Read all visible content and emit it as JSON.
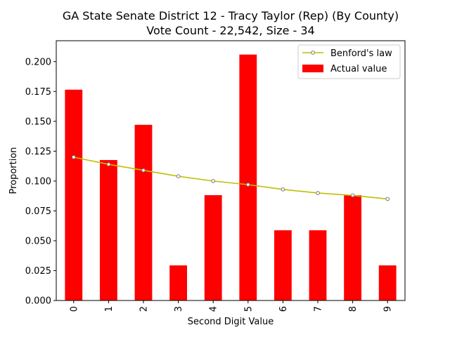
{
  "chart_data": {
    "type": "bar",
    "title": "GA State Senate District 12 - Tracy Taylor (Rep) (By County)",
    "subtitle": "Vote Count - 22,542, Size - 34",
    "xlabel": "Second Digit Value",
    "ylabel": "Proportion",
    "categories": [
      "0",
      "1",
      "2",
      "3",
      "4",
      "5",
      "6",
      "7",
      "8",
      "9"
    ],
    "ylim": [
      0,
      0.2175
    ],
    "yticks": [
      "0.000",
      "0.025",
      "0.050",
      "0.075",
      "0.100",
      "0.125",
      "0.150",
      "0.175",
      "0.200"
    ],
    "grid": false,
    "legend_position": "top-right",
    "series": [
      {
        "name": "Benford's law",
        "kind": "line",
        "color": "#bfbf00",
        "values": [
          0.12,
          0.114,
          0.109,
          0.104,
          0.1,
          0.097,
          0.093,
          0.09,
          0.088,
          0.085
        ]
      },
      {
        "name": "Actual value",
        "kind": "bar",
        "color": "#ff0000",
        "values": [
          0.1765,
          0.1176,
          0.1471,
          0.0294,
          0.0882,
          0.2059,
          0.0588,
          0.0588,
          0.0882,
          0.0294
        ]
      }
    ]
  }
}
